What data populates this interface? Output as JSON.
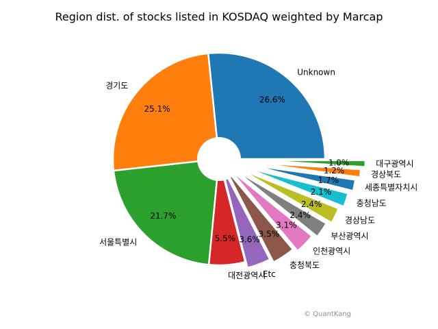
{
  "chart_data": {
    "type": "pie",
    "title": "Region dist. of stocks listed in KOSDAQ weighted by Marcap",
    "startangle_deg": 0,
    "direction": "counterclockwise",
    "donut_hole": true,
    "slices": [
      {
        "label": "Unknown",
        "value": 26.6,
        "pct_label": "26.6%",
        "color": "#1f77b4"
      },
      {
        "label": "경기도",
        "value": 25.1,
        "pct_label": "25.1%",
        "color": "#ff7f0e"
      },
      {
        "label": "서울특별시",
        "value": 21.7,
        "pct_label": "21.7%",
        "color": "#2ca02c"
      },
      {
        "label": "대전광역시",
        "value": 5.5,
        "pct_label": "5.5%",
        "color": "#d62728"
      },
      {
        "label": "Etc",
        "value": 3.6,
        "pct_label": "3.6%",
        "color": "#9467bd"
      },
      {
        "label": "충청북도",
        "value": 3.5,
        "pct_label": "3.5%",
        "color": "#8c564b"
      },
      {
        "label": "인천광역시",
        "value": 3.1,
        "pct_label": "3.1%",
        "color": "#e377c2"
      },
      {
        "label": "부산광역시",
        "value": 2.4,
        "pct_label": "2.4%",
        "color": "#7f7f7f"
      },
      {
        "label": "경상남도",
        "value": 2.4,
        "pct_label": "2.4%",
        "color": "#bcbd22"
      },
      {
        "label": "충청남도",
        "value": 2.1,
        "pct_label": "2.1%",
        "color": "#17becf"
      },
      {
        "label": "세종특별자치시",
        "value": 1.7,
        "pct_label": "1.7%",
        "color": "#1f77b4"
      },
      {
        "label": "경상북도",
        "value": 1.2,
        "pct_label": "1.2%",
        "color": "#ff7f0e"
      },
      {
        "label": "대구광역시",
        "value": 1.0,
        "pct_label": "1.0%",
        "color": "#2ca02c"
      }
    ]
  },
  "credit": "© QuantKang"
}
